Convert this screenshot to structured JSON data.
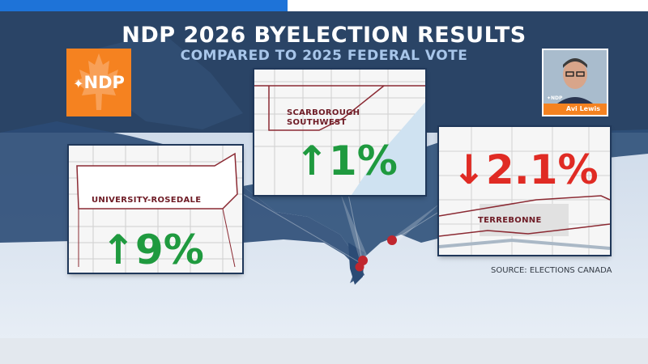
{
  "title": "NDP 2026 BYELECTION RESULTS",
  "subtitle": "COMPARED TO 2025 FEDERAL VOTE",
  "logo": {
    "text": "NDP",
    "color": "#f58220",
    "icon": "maple-leaf-icon"
  },
  "candidate": {
    "party_tag": "NDP",
    "name": "Avi Lewis"
  },
  "ridings": [
    {
      "name": "UNIVERSITY-ROSEDALE",
      "change": "9%",
      "direction": "up",
      "icon": "arrow-up-icon"
    },
    {
      "name_line1": "SCARBOROUGH",
      "name_line2": "SOUTHWEST",
      "change": "1%",
      "direction": "up",
      "icon": "arrow-up-icon"
    },
    {
      "name": "TERREBONNE",
      "change": "2.1%",
      "direction": "down",
      "icon": "arrow-down-icon"
    }
  ],
  "source": "SOURCE: ELECTIONS CANADA",
  "colors": {
    "up": "#1f9a3f",
    "down": "#e02b24",
    "navy": "#2a4466"
  }
}
